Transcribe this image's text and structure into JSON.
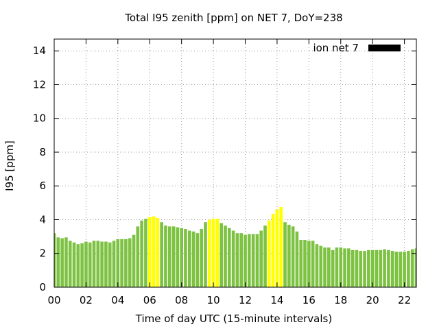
{
  "chart_data": {
    "type": "bar",
    "title": "Total I95 zenith [ppm] on NET 7, DoY=238",
    "xlabel": "Time of day UTC (15-minute intervals)",
    "ylabel": "I95 [ppm]",
    "xlim": [
      0,
      22.75
    ],
    "ylim": [
      0,
      14.7
    ],
    "x_ticks": [
      "00",
      "02",
      "04",
      "06",
      "08",
      "10",
      "12",
      "14",
      "16",
      "18",
      "20",
      "22"
    ],
    "y_ticks": [
      "0",
      "2",
      "4",
      "6",
      "8",
      "10",
      "12",
      "14"
    ],
    "grid": true,
    "legend": {
      "position": "top-right",
      "entries": [
        {
          "label": "ion net 7",
          "color": "#000000"
        }
      ]
    },
    "colors": {
      "normal": "#7dc242",
      "high": "#ffff00"
    },
    "interval_hours": 0.25,
    "values": [
      3.2,
      2.95,
      2.9,
      2.95,
      2.75,
      2.65,
      2.55,
      2.6,
      2.7,
      2.65,
      2.75,
      2.75,
      2.7,
      2.7,
      2.65,
      2.75,
      2.85,
      2.85,
      2.85,
      2.9,
      3.1,
      3.6,
      3.95,
      4.05,
      4.15,
      4.2,
      4.1,
      3.85,
      3.65,
      3.6,
      3.6,
      3.55,
      3.5,
      3.45,
      3.35,
      3.3,
      3.2,
      3.45,
      3.85,
      4.0,
      4.05,
      4.05,
      3.8,
      3.65,
      3.5,
      3.35,
      3.2,
      3.2,
      3.1,
      3.15,
      3.15,
      3.15,
      3.35,
      3.65,
      3.95,
      4.35,
      4.6,
      4.75,
      3.85,
      3.7,
      3.6,
      3.3,
      2.8,
      2.8,
      2.75,
      2.75,
      2.55,
      2.45,
      2.35,
      2.35,
      2.2,
      2.35,
      2.35,
      2.3,
      2.3,
      2.2,
      2.2,
      2.15,
      2.15,
      2.2,
      2.2,
      2.2,
      2.2,
      2.25,
      2.2,
      2.15,
      2.1,
      2.1,
      2.1,
      2.15,
      2.25,
      2.3
    ],
    "highlight": [
      false,
      false,
      false,
      false,
      false,
      false,
      false,
      false,
      false,
      false,
      false,
      false,
      false,
      false,
      false,
      false,
      false,
      false,
      false,
      false,
      false,
      false,
      false,
      false,
      true,
      true,
      true,
      false,
      false,
      false,
      false,
      false,
      false,
      false,
      false,
      false,
      false,
      false,
      false,
      true,
      true,
      true,
      false,
      false,
      false,
      false,
      false,
      false,
      false,
      false,
      false,
      false,
      false,
      false,
      true,
      true,
      true,
      true,
      false,
      false,
      false,
      false,
      false,
      false,
      false,
      false,
      false,
      false,
      false,
      false,
      false,
      false,
      false,
      false,
      false,
      false,
      false,
      false,
      false,
      false,
      false,
      false,
      false,
      false,
      false,
      false,
      false,
      false,
      false,
      false,
      false,
      false
    ]
  }
}
